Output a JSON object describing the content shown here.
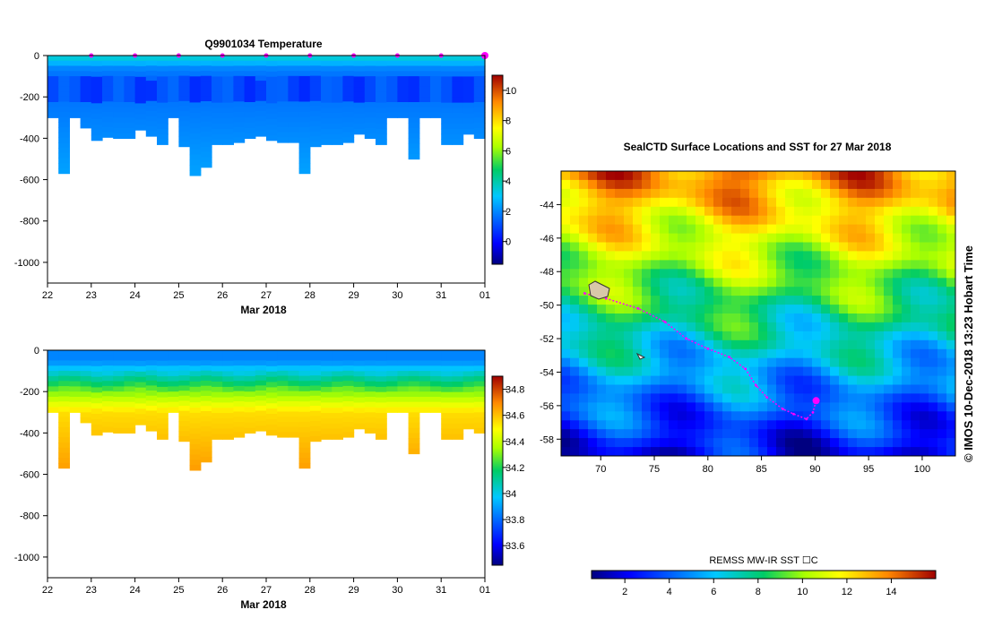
{
  "chart_data": [
    {
      "type": "heatmap",
      "title": "Q9901034  Temperature",
      "xlabel": "Mar 2018",
      "ylabel": "",
      "x_tick_labels": [
        "22",
        "23",
        "24",
        "25",
        "26",
        "27",
        "28",
        "29",
        "30",
        "31",
        "01"
      ],
      "x_range_days": [
        22,
        32
      ],
      "y_ticks": [
        0,
        -200,
        -400,
        -600,
        -800,
        -1000
      ],
      "ylim": [
        -1100,
        0
      ],
      "profile_days": [
        22.0,
        22.25,
        22.5,
        22.75,
        23.0,
        23.25,
        23.5,
        23.75,
        24.0,
        24.25,
        24.5,
        24.75,
        25.0,
        25.25,
        25.5,
        25.75,
        26.0,
        26.25,
        26.5,
        26.75,
        27.0,
        27.25,
        27.5,
        27.75,
        28.0,
        28.25,
        28.5,
        28.75,
        29.0,
        29.25,
        29.5,
        29.75,
        30.0,
        30.25,
        30.5,
        30.75,
        31.0,
        31.25,
        31.5,
        31.75
      ],
      "profile_max_depth": [
        300,
        570,
        300,
        350,
        410,
        395,
        400,
        400,
        360,
        390,
        430,
        300,
        440,
        580,
        540,
        430,
        430,
        420,
        400,
        390,
        410,
        420,
        420,
        570,
        440,
        430,
        430,
        420,
        380,
        400,
        430,
        300,
        300,
        500,
        300,
        300,
        430,
        430,
        380,
        400
      ],
      "surface_marker_days": [
        23,
        24,
        25,
        26,
        27,
        28,
        29,
        30,
        31,
        32
      ],
      "colorbar": {
        "label": "",
        "range": [
          -1.5,
          11
        ],
        "ticks": [
          0,
          2,
          4,
          6,
          8,
          10
        ]
      }
    },
    {
      "type": "heatmap",
      "title": "",
      "xlabel": "Mar 2018",
      "ylabel": "",
      "x_tick_labels": [
        "22",
        "23",
        "24",
        "25",
        "26",
        "27",
        "28",
        "29",
        "30",
        "31",
        "01"
      ],
      "x_range_days": [
        22,
        32
      ],
      "y_ticks": [
        0,
        -200,
        -400,
        -600,
        -800,
        -1000
      ],
      "ylim": [
        -1100,
        0
      ],
      "colorbar": {
        "label": "",
        "range": [
          33.45,
          34.9
        ],
        "ticks": [
          33.6,
          33.8,
          34,
          34.2,
          34.4,
          34.6,
          34.8
        ]
      }
    },
    {
      "type": "heatmap",
      "title": "SealCTD Surface Locations and SST for 27 Mar 2018",
      "xlabel": "",
      "ylabel": "",
      "x_ticks": [
        70,
        75,
        80,
        85,
        90,
        95,
        100
      ],
      "xlim": [
        66.3,
        103.1
      ],
      "y_ticks": [
        -44,
        -46,
        -48,
        -50,
        -52,
        -54,
        -56,
        -58
      ],
      "ylim": [
        -59.0,
        -42.0
      ],
      "track": [
        [
          68.5,
          -49.3
        ],
        [
          70.5,
          -49.6
        ],
        [
          73.5,
          -50.2
        ],
        [
          76,
          -51
        ],
        [
          78,
          -52
        ],
        [
          80,
          -52.6
        ],
        [
          82,
          -53.1
        ],
        [
          83.5,
          -53.8
        ],
        [
          84.5,
          -54.8
        ],
        [
          85.5,
          -55.5
        ],
        [
          87,
          -56.2
        ],
        [
          88,
          -56.5
        ],
        [
          89.2,
          -56.8
        ],
        [
          89.8,
          -56.4
        ],
        [
          90.1,
          -55.7
        ]
      ],
      "last_position": [
        90.1,
        -55.7
      ],
      "colorbar": {
        "label": "REMSS MW-IR SST ☐C",
        "range": [
          0.5,
          16
        ],
        "ticks": [
          2,
          4,
          6,
          8,
          10,
          12,
          14
        ]
      }
    }
  ],
  "credit": "©  IMOS 10-Dec-2018 13:23 Hobart Time"
}
